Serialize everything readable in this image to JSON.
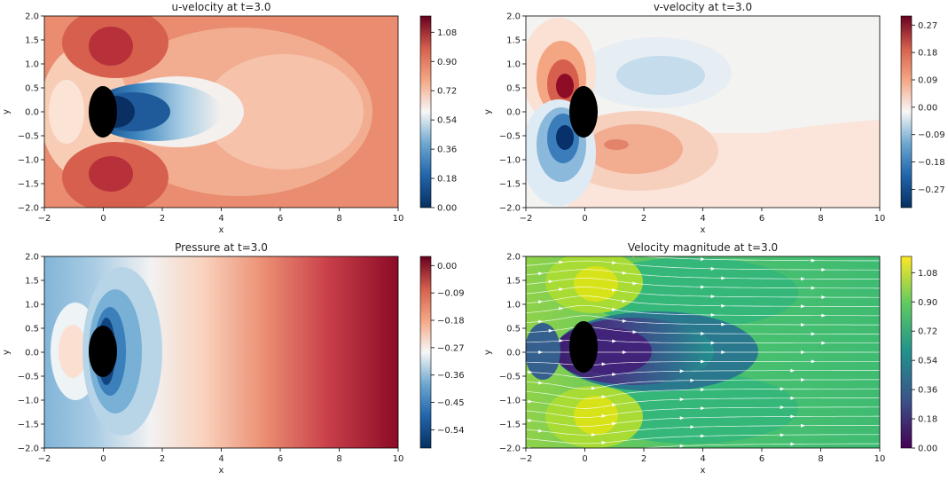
{
  "chart_data": [
    {
      "type": "heatmap",
      "title": "u-velocity at t=3.0",
      "xlabel": "x",
      "ylabel": "y",
      "xlim": [
        -2,
        10
      ],
      "ylim": [
        -2.0,
        2.0
      ],
      "x_ticks": [
        "−2",
        "0",
        "2",
        "4",
        "6",
        "8",
        "10"
      ],
      "y_ticks": [
        "2.0",
        "1.5",
        "1.0",
        "0.5",
        "0.0",
        "−0.5",
        "−1.0",
        "−1.5",
        "−2.0"
      ],
      "colormap": "RdBu_r",
      "colorbar_range": [
        0.0,
        1.18
      ],
      "colorbar_ticks": [
        "1.08",
        "0.90",
        "0.72",
        "0.54",
        "0.36",
        "0.18",
        "0.00"
      ],
      "colors": {
        "low": "#053061",
        "mid": "#f7f7f7",
        "high": "#67001f"
      }
    },
    {
      "type": "heatmap",
      "title": "v-velocity at t=3.0",
      "xlabel": "x",
      "ylabel": "y",
      "xlim": [
        -2,
        10
      ],
      "ylim": [
        -2.0,
        2.0
      ],
      "x_ticks": [
        "−2",
        "0",
        "2",
        "4",
        "6",
        "8",
        "10"
      ],
      "y_ticks": [
        "2.0",
        "1.5",
        "1.0",
        "0.5",
        "0.0",
        "−0.5",
        "−1.0",
        "−1.5",
        "−2.0"
      ],
      "colormap": "RdBu_r",
      "colorbar_range": [
        -0.33,
        0.3
      ],
      "colorbar_ticks": [
        "0.27",
        "0.18",
        "0.09",
        "0.00",
        "−0.09",
        "−0.18",
        "−0.27"
      ],
      "colors": {
        "low": "#053061",
        "mid": "#f7f7f7",
        "high": "#67001f"
      }
    },
    {
      "type": "heatmap",
      "title": "Pressure at t=3.0",
      "xlabel": "x",
      "ylabel": "y",
      "xlim": [
        -2,
        10
      ],
      "ylim": [
        -2.0,
        2.0
      ],
      "x_ticks": [
        "−2",
        "0",
        "2",
        "4",
        "6",
        "8",
        "10"
      ],
      "y_ticks": [
        "2.0",
        "1.5",
        "1.0",
        "0.5",
        "0.0",
        "−0.5",
        "−1.0",
        "−1.5",
        "−2.0"
      ],
      "colormap": "RdBu_r",
      "colorbar_range": [
        -0.6,
        0.03
      ],
      "colorbar_ticks": [
        "0.00",
        "−0.09",
        "−0.18",
        "−0.27",
        "−0.36",
        "−0.45",
        "−0.54"
      ],
      "colors": {
        "low": "#053061",
        "mid": "#f7f7f7",
        "high": "#67001f"
      }
    },
    {
      "type": "heatmap",
      "title": "Velocity magnitude at t=3.0",
      "xlabel": "x",
      "ylabel": "y",
      "xlim": [
        -2,
        10
      ],
      "ylim": [
        -2.0,
        2.0
      ],
      "x_ticks": [
        "−2",
        "0",
        "2",
        "4",
        "6",
        "8",
        "10"
      ],
      "y_ticks": [
        "2.0",
        "1.5",
        "1.0",
        "0.5",
        "0.0",
        "−0.5",
        "−1.0",
        "−1.5",
        "−2.0"
      ],
      "colormap": "viridis",
      "colorbar_range": [
        0.0,
        1.18
      ],
      "colorbar_ticks": [
        "1.08",
        "0.90",
        "0.72",
        "0.54",
        "0.36",
        "0.18",
        "0.00"
      ],
      "streamlines": true,
      "colors": {
        "low": "#440154",
        "mid": "#21918c",
        "high": "#fde725"
      }
    }
  ]
}
